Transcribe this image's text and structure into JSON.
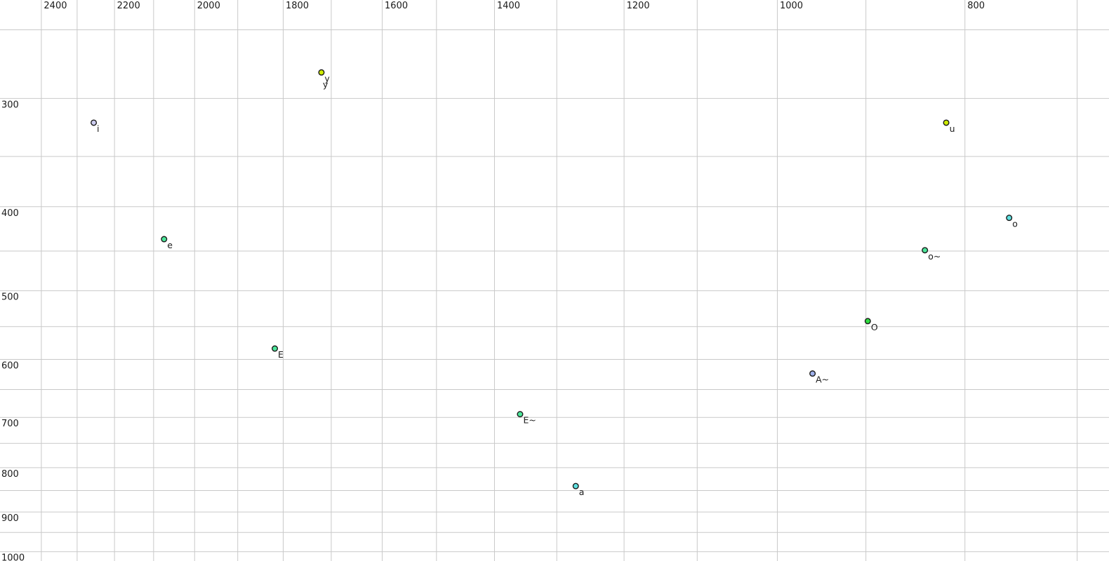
{
  "chart_data": {
    "type": "scatter",
    "title": "",
    "xlabel": "",
    "ylabel": "",
    "description": "Vowel formant chart: F2 (Hz) on reversed log x-axis (labels at top), F1 (Hz) on log y-axis (labels at left), grid on, no legend",
    "x_axis": {
      "scale": "log",
      "reversed": true,
      "left_hz": 2521,
      "right_hz": 674,
      "gridlines_hz": [
        2400,
        2300,
        2200,
        2100,
        2000,
        1900,
        1800,
        1700,
        1600,
        1500,
        1400,
        1300,
        1200,
        1100,
        1000,
        900,
        800,
        700
      ],
      "tick_labels_hz": [
        2400,
        2200,
        2000,
        1800,
        1600,
        1400,
        1200,
        1000,
        800
      ]
    },
    "y_axis": {
      "scale": "log",
      "top_hz": 231,
      "bottom_hz": 1025,
      "gridlines_hz": [
        250,
        300,
        350,
        400,
        450,
        500,
        550,
        600,
        650,
        700,
        750,
        800,
        850,
        900,
        950,
        1000
      ],
      "tick_labels_hz": [
        300,
        400,
        500,
        600,
        700,
        800,
        900,
        1000
      ]
    },
    "points": [
      {
        "label": "i",
        "f2": 2255,
        "f1": 320,
        "fill": "#ccccf0"
      },
      {
        "label": "y",
        "f2": 1720,
        "f1": 280,
        "fill": "#cdea00",
        "label_color": "#9a9ec2",
        "second_label": {
          "text": "y",
          "color": "#1a1a1a"
        }
      },
      {
        "label": "u",
        "f2": 818,
        "f1": 320,
        "fill": "#cdea00"
      },
      {
        "label": "e",
        "f2": 2074,
        "f1": 436,
        "fill": "#4ce69a"
      },
      {
        "label": "o",
        "f2": 759,
        "f1": 412,
        "fill": "#5fe0e0"
      },
      {
        "label": "o~",
        "f2": 839,
        "f1": 449,
        "fill": "#4ce69a"
      },
      {
        "label": "O",
        "f2": 898,
        "f1": 542,
        "fill": "#2edc3f"
      },
      {
        "label": "E",
        "f2": 1818,
        "f1": 583,
        "fill": "#4ce69a"
      },
      {
        "label": "A~",
        "f2": 959,
        "f1": 623,
        "fill": "#9fb0ea"
      },
      {
        "label": "E~",
        "f2": 1358,
        "f1": 694,
        "fill": "#4ce69a"
      },
      {
        "label": "a",
        "f2": 1271,
        "f1": 840,
        "fill": "#5fe0e0"
      }
    ],
    "colors": {
      "background": "#ffffff",
      "grid": "#c9c9c9",
      "tick_text": "#1a1a1a",
      "point_label": "#1a1a1a",
      "marker_outline": "#1a1a1a"
    }
  }
}
